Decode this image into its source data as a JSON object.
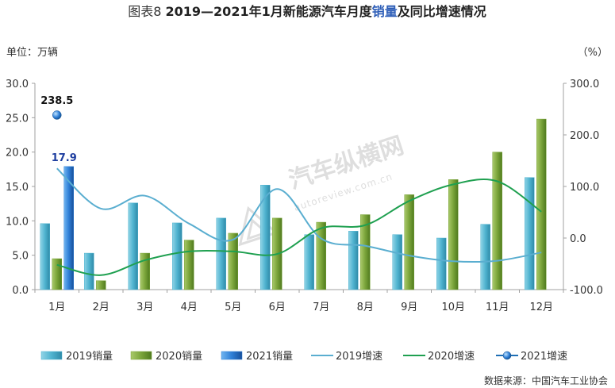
{
  "chart_data": {
    "type": "bar",
    "title_prefix": "图表8",
    "title_main": "2019—2021年1月新能源汽车月度",
    "title_highlight": "销量",
    "title_suffix": "及同比增速情况",
    "y_left_unit": "单位：万辆",
    "y_right_unit": "（%）",
    "categories": [
      "1月",
      "2月",
      "3月",
      "4月",
      "5月",
      "6月",
      "7月",
      "8月",
      "9月",
      "10月",
      "11月",
      "12月"
    ],
    "ylim_left": [
      0,
      30
    ],
    "ylim_right": [
      -100,
      300
    ],
    "y_left_ticks": [
      "0.0",
      "5.0",
      "10.0",
      "15.0",
      "20.0",
      "25.0",
      "30.0"
    ],
    "y_right_ticks": [
      "-100.0",
      "0.0",
      "100.0",
      "200.0",
      "300.0"
    ],
    "bar_series": [
      {
        "name": "2019销量",
        "color": "#4fb3cf",
        "values": [
          9.6,
          5.3,
          12.6,
          9.7,
          10.4,
          15.2,
          8.0,
          8.5,
          8.0,
          7.5,
          9.5,
          16.3
        ]
      },
      {
        "name": "2020销量",
        "color": "#7aa43a",
        "values": [
          4.5,
          1.3,
          5.3,
          7.2,
          8.2,
          10.4,
          9.8,
          10.9,
          13.8,
          16.0,
          20.0,
          24.8
        ]
      },
      {
        "name": "2021销量",
        "color": "#2f7fd6",
        "values": [
          17.9,
          null,
          null,
          null,
          null,
          null,
          null,
          null,
          null,
          null,
          null,
          null
        ]
      }
    ],
    "line_series": [
      {
        "name": "2019增速",
        "color": "#5aaed0",
        "values": [
          135,
          57,
          82,
          28,
          -3,
          95,
          -1,
          -15,
          -34,
          -45,
          -44,
          -28
        ]
      },
      {
        "name": "2020增速",
        "color": "#1fa050",
        "values": [
          -52,
          -72,
          -43,
          -26,
          -26,
          -31,
          19,
          25,
          72,
          104,
          110,
          51
        ]
      }
    ],
    "point_series": {
      "name": "2021增速",
      "color": "#1f6fb5",
      "category": "1月",
      "value": 238.5,
      "label": "238.5"
    },
    "bar_label": {
      "category": "1月",
      "text": "17.9"
    },
    "legend_position": "bottom"
  },
  "watermark": {
    "main": "汽车纵横网",
    "sub": "autoreview.com.cn"
  },
  "source": "数据来源：中国汽车工业协会"
}
